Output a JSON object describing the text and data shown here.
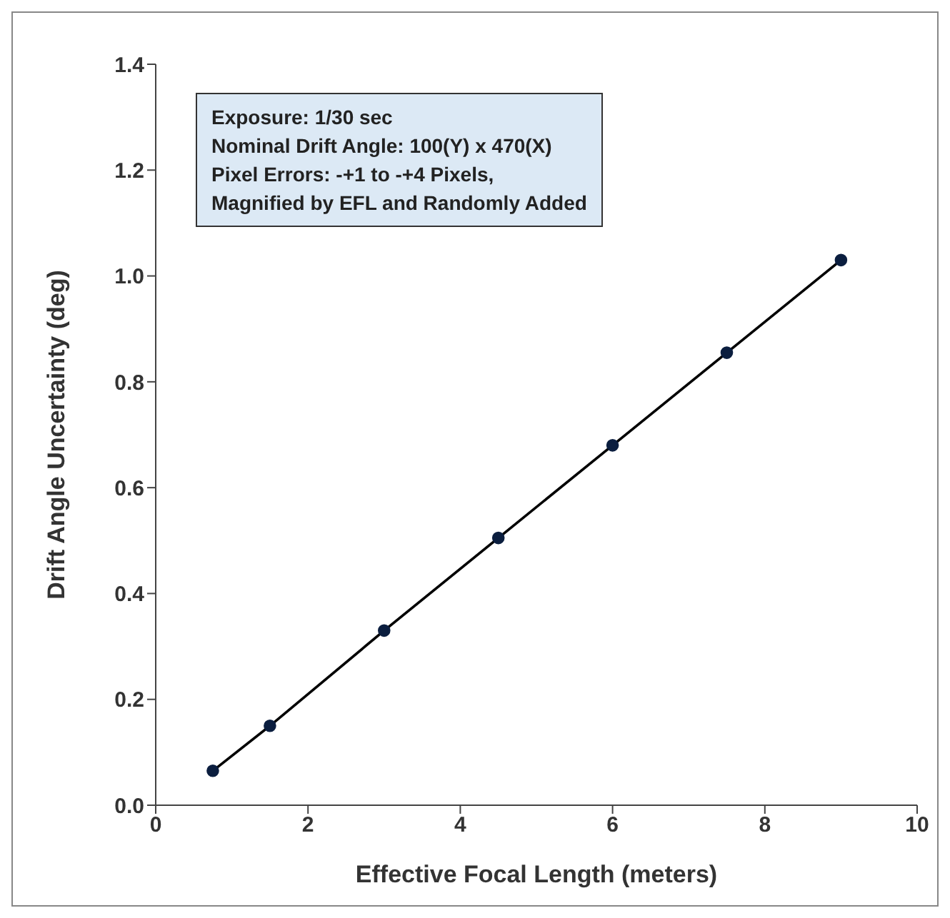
{
  "chart_data": {
    "type": "line",
    "xlabel": "Effective Focal Length (meters)",
    "ylabel": "Drift Angle Uncertainty  (deg)",
    "annotations": [
      "Exposure:  1/30 sec",
      "Nominal Drift Angle: 100(Y) x 470(X)",
      "Pixel Errors:  -+1 to -+4 Pixels,",
      "Magnified by EFL and Randomly Added"
    ],
    "x": [
      0.75,
      1.5,
      3,
      4.5,
      6,
      7.5,
      9
    ],
    "series": [
      {
        "color": "#0b1e3f",
        "values": [
          0.065,
          0.15,
          0.33,
          0.505,
          0.68,
          0.855,
          1.03
        ]
      }
    ],
    "xlim": [
      0,
      10
    ],
    "xticks": [
      0,
      2,
      4,
      6,
      8,
      10
    ],
    "ylim": [
      0,
      1.4
    ],
    "yticks": [
      {
        "value": 0,
        "label": "0.0"
      },
      0.2,
      0.4,
      0.6,
      0.8,
      {
        "value": 1,
        "label": "1.0"
      },
      1.2,
      1.4
    ],
    "grid": false,
    "marker": "circle",
    "line_style": "solid"
  }
}
